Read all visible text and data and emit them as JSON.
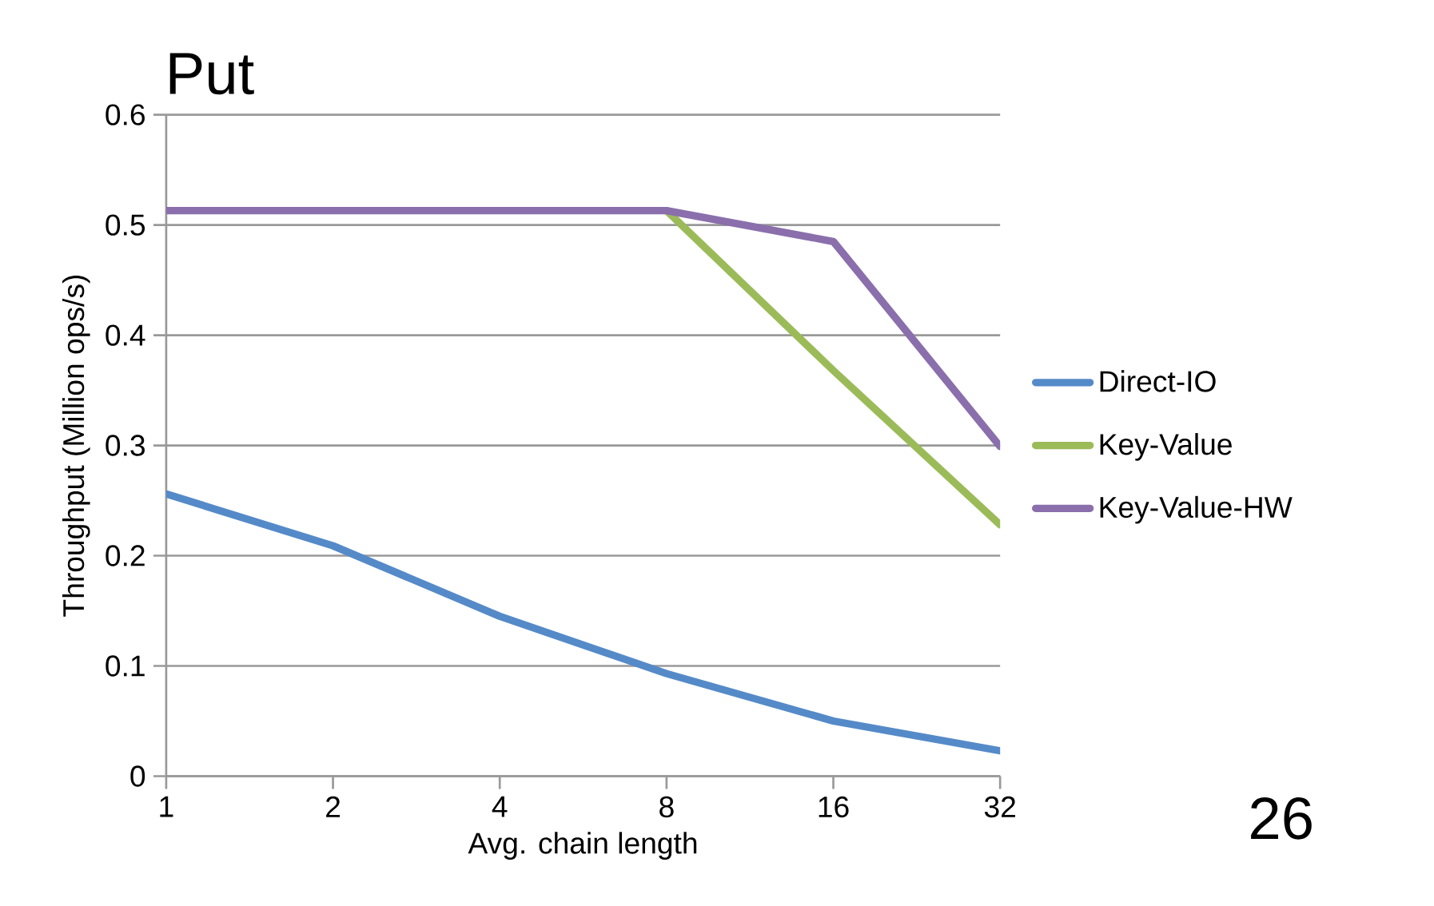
{
  "chart_data": {
    "type": "line",
    "title": "Put",
    "xlabel": "Avg. chain length",
    "ylabel": "Throughput (Million ops/s)",
    "categories": [
      "1",
      "2",
      "4",
      "8",
      "16",
      "32"
    ],
    "series": [
      {
        "name": "Direct-IO",
        "color": "#558ac8",
        "values": [
          0.256,
          0.209,
          0.145,
          0.093,
          0.05,
          0.023
        ]
      },
      {
        "name": "Key-Value",
        "color": "#9bbb59",
        "values": [
          null,
          null,
          null,
          0.513,
          0.368,
          0.228
        ]
      },
      {
        "name": "Key-Value-HW",
        "color": "#8a6fac",
        "values": [
          0.513,
          0.513,
          0.513,
          0.513,
          0.485,
          0.299
        ]
      }
    ],
    "ylim": [
      0,
      0.6
    ],
    "yticks": [
      0,
      0.1,
      0.2,
      0.3,
      0.4,
      0.5,
      0.6
    ],
    "grid": "y",
    "legend": "right",
    "marker": "none",
    "line_style": "solid",
    "annotations": [
      "26"
    ]
  }
}
